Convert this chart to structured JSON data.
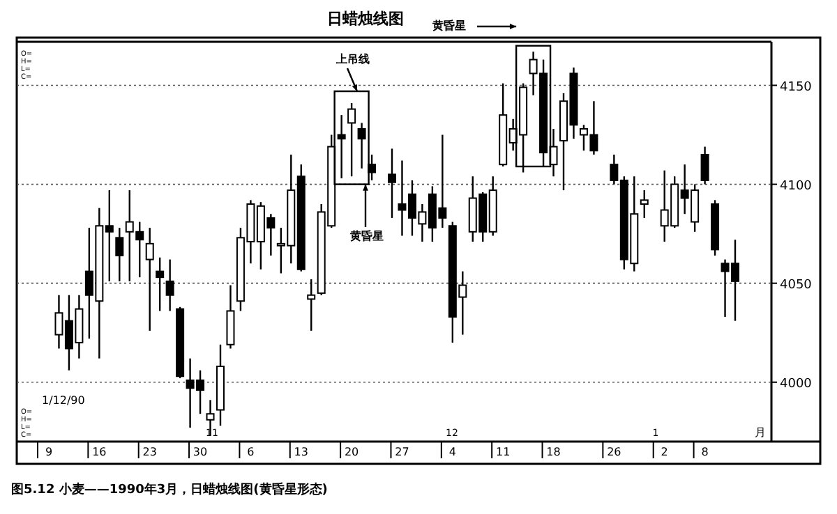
{
  "chart_data": {
    "type": "candlestick",
    "title": "日蜡烛线图",
    "color": "#000000",
    "categories": [
      "9",
      null,
      null,
      null,
      null,
      "16",
      null,
      null,
      null,
      null,
      "23",
      null,
      null,
      null,
      null,
      "30",
      null,
      null,
      null,
      null,
      "6",
      null,
      null,
      null,
      null,
      "13",
      null,
      null,
      null,
      null,
      "20",
      null,
      null,
      null,
      null,
      "27",
      null,
      null,
      null,
      null,
      "4",
      null,
      null,
      null,
      null,
      "11",
      null,
      null,
      null,
      null,
      "18",
      null,
      null,
      null,
      null,
      null,
      "26",
      null,
      null,
      null,
      null,
      "2",
      null,
      null,
      null,
      "8",
      null,
      null,
      null
    ],
    "ohlc": [
      null,
      [
        4024,
        4044,
        4017,
        4035
      ],
      [
        4031,
        4044,
        4006,
        4017
      ],
      [
        4020,
        4044,
        4012,
        4037
      ],
      [
        4056,
        4078,
        4022,
        4044
      ],
      [
        4041,
        4088,
        4012,
        4079
      ],
      [
        4079,
        4097,
        4051,
        4076
      ],
      [
        4073,
        4078,
        4051,
        4064
      ],
      [
        4076,
        4097,
        4051,
        4081
      ],
      [
        4076,
        4081,
        4053,
        4072
      ],
      [
        4062,
        4078,
        4026,
        4070
      ],
      [
        4056,
        4063,
        4036,
        4053
      ],
      [
        4051,
        4062,
        4036,
        4044
      ],
      [
        4037,
        4038,
        4002,
        4003
      ],
      [
        4001,
        4012,
        3977,
        3997
      ],
      [
        4001,
        4006,
        3984,
        3996
      ],
      [
        3981,
        3991,
        3973,
        3984
      ],
      [
        3986,
        4019,
        3978,
        4008
      ],
      [
        4019,
        4049,
        4017,
        4036
      ],
      [
        4041,
        4078,
        4036,
        4073
      ],
      [
        4071,
        4092,
        4060,
        4090
      ],
      [
        4071,
        4091,
        4057,
        4089
      ],
      [
        4083,
        4085,
        4064,
        4078
      ],
      [
        4069,
        4078,
        4055,
        4070
      ],
      [
        4069,
        4115,
        4060,
        4097
      ],
      [
        4104,
        4110,
        4056,
        4057
      ],
      [
        4042,
        4052,
        4026,
        4044
      ],
      [
        4045,
        4090,
        4044,
        4086
      ],
      [
        4079,
        4125,
        4078,
        4119
      ],
      [
        4125,
        4135,
        4103,
        4123
      ],
      [
        4131,
        4141,
        4104,
        4138
      ],
      [
        4128,
        4131,
        4108,
        4123
      ],
      [
        4110,
        4115,
        4102,
        4106
      ],
      null,
      [
        4105,
        4118,
        4083,
        4101
      ],
      [
        4090,
        4112,
        4074,
        4087
      ],
      [
        4095,
        4102,
        4074,
        4083
      ],
      [
        4080,
        4090,
        4071,
        4086
      ],
      [
        4095,
        4099,
        4071,
        4078
      ],
      [
        4088,
        4125,
        4078,
        4083
      ],
      [
        4079,
        4081,
        4020,
        4033
      ],
      [
        4043,
        4056,
        4024,
        4049
      ],
      [
        4076,
        4104,
        4071,
        4093
      ],
      [
        4095,
        4096,
        4071,
        4076
      ],
      [
        4076,
        4104,
        4074,
        4097
      ],
      [
        4110,
        4151,
        4109,
        4135
      ],
      [
        4121,
        4133,
        4117,
        4128
      ],
      [
        4125,
        4151,
        4106,
        4149
      ],
      [
        4156,
        4167,
        4145,
        4163
      ],
      [
        4156,
        4163,
        4109,
        4116
      ],
      [
        4110,
        4128,
        4104,
        4119
      ],
      [
        4122,
        4146,
        4097,
        4142
      ],
      [
        4156,
        4159,
        4123,
        4130
      ],
      [
        4125,
        4130,
        4117,
        4128
      ],
      [
        4125,
        4142,
        4115,
        4117
      ],
      null,
      [
        4110,
        4115,
        4100,
        4102
      ],
      [
        4102,
        4104,
        4057,
        4062
      ],
      [
        4060,
        4104,
        4056,
        4085
      ],
      [
        4090,
        4097,
        4083,
        4092
      ],
      null,
      [
        4079,
        4107,
        4071,
        4087
      ],
      [
        4079,
        4104,
        4078,
        4100
      ],
      [
        4097,
        4110,
        4085,
        4093
      ],
      [
        4081,
        4100,
        4076,
        4097
      ],
      [
        4115,
        4119,
        4100,
        4102
      ],
      [
        4090,
        4092,
        4064,
        4067
      ],
      [
        4060,
        4062,
        4033,
        4056
      ],
      [
        4060,
        4072,
        4031,
        4051
      ]
    ],
    "ylim": [
      3970,
      4172
    ],
    "yticks": [
      4000,
      4050,
      4100,
      4150
    ],
    "grid": "y",
    "annotations": [
      "上吊线",
      "黄昏星",
      "黄昏星",
      "1/12/90",
      "11",
      "12",
      "1",
      "月",
      "O=",
      "H=",
      "L=",
      "C=",
      "O=",
      "H=",
      "L=",
      "C=",
      "图5.12  小麦——1990年3月，日蜡烛线图(黄昏星形态)"
    ]
  }
}
